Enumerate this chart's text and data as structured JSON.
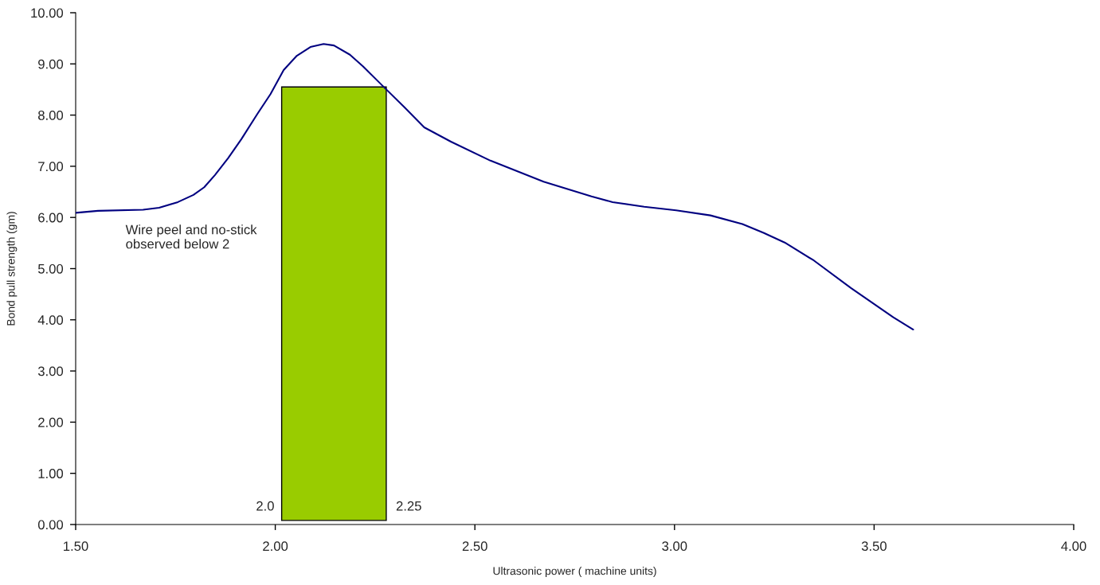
{
  "chart_data": {
    "type": "line",
    "xlabel": "Ultrasonic power ( machine units)",
    "ylabel": "Bond pull strength (gm)",
    "xlim": [
      1.5,
      4.0
    ],
    "xticks": [
      {
        "value": 1.5,
        "label": "1.50"
      },
      {
        "value": 2.0,
        "label": "2.00"
      },
      {
        "value": 2.5,
        "label": "2.50"
      },
      {
        "value": 3.0,
        "label": "3.00"
      },
      {
        "value": 3.5,
        "label": "3.50"
      },
      {
        "value": 4.0,
        "label": "4.00"
      }
    ],
    "ylim": [
      0,
      10
    ],
    "yticks": [
      {
        "value": 0,
        "label": "0.00"
      },
      {
        "value": 1,
        "label": "1.00"
      },
      {
        "value": 2,
        "label": "2.00"
      },
      {
        "value": 3,
        "label": "3.00"
      },
      {
        "value": 4,
        "label": "4.00"
      },
      {
        "value": 5,
        "label": "5.00"
      },
      {
        "value": 6,
        "label": "6.00"
      },
      {
        "value": 7,
        "label": "7.00"
      },
      {
        "value": 8,
        "label": "8.00"
      },
      {
        "value": 9,
        "label": "9.00"
      },
      {
        "value": 10,
        "label": "10.00"
      }
    ],
    "grid": false,
    "legend": false,
    "marker": "none",
    "line_style": "solid",
    "series": [
      {
        "type": "bar",
        "color": "#99cc00",
        "x": [
          2.147
        ],
        "base": [
          0.08
        ],
        "values": [
          8.47
        ]
      },
      {
        "color": "#000080",
        "x": [
          1.5,
          1.556,
          1.669,
          1.709,
          1.756,
          1.795,
          1.822,
          1.849,
          1.882,
          1.915,
          1.955,
          1.988,
          2.021,
          2.054,
          2.088,
          2.121,
          2.147,
          2.187,
          2.22,
          2.273,
          2.32,
          2.373,
          2.44,
          2.539,
          2.672,
          2.792,
          2.845,
          2.924,
          3.004,
          3.09,
          3.17,
          3.223,
          3.276,
          3.349,
          3.442,
          3.548,
          3.598
        ],
        "values": [
          6.09,
          6.13,
          6.15,
          6.19,
          6.3,
          6.44,
          6.59,
          6.83,
          7.16,
          7.53,
          8.02,
          8.41,
          8.88,
          9.16,
          9.33,
          9.39,
          9.36,
          9.18,
          8.95,
          8.54,
          8.18,
          7.76,
          7.48,
          7.11,
          6.7,
          6.41,
          6.3,
          6.21,
          6.14,
          6.04,
          5.87,
          5.7,
          5.51,
          5.16,
          4.62,
          4.05,
          3.81
        ]
      }
    ],
    "annotations": [
      "Wire peel and no-stick\nobserved below 2",
      {
        "text": "2.0",
        "x": 2.02,
        "y": 0.34
      },
      {
        "text": "2.25",
        "x": 2.28,
        "y": 0.34
      }
    ]
  }
}
